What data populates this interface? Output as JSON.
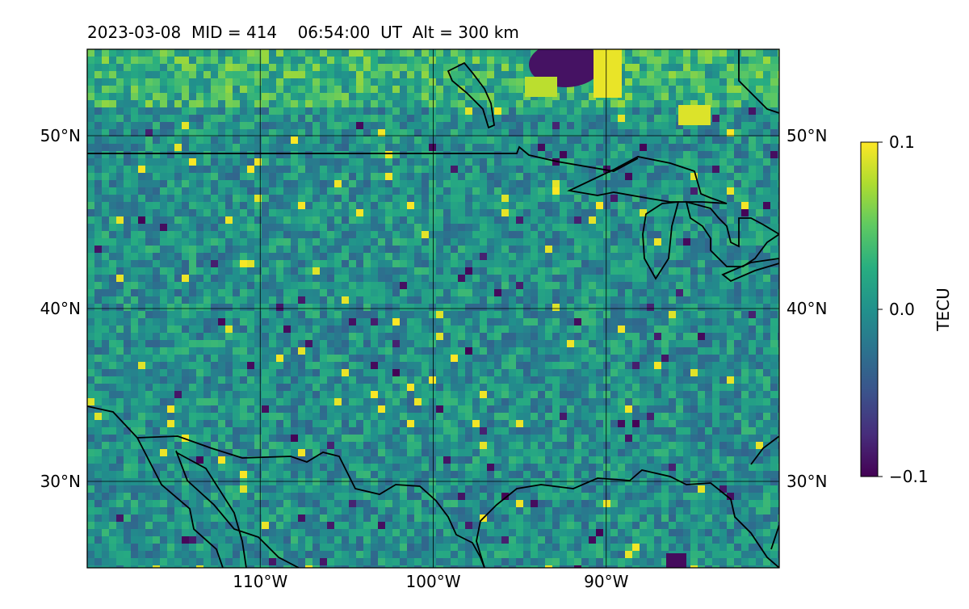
{
  "title": "2023-03-08  MID = 414    06:54:00  UT  Alt = 300 km",
  "map": {
    "projection": "equirectangular",
    "lon_range": [
      -120,
      -80
    ],
    "lat_range": [
      25,
      55
    ],
    "gridlines": true,
    "field": "differential TEC (simulated texture)"
  },
  "axes": {
    "lat_ticks": [
      {
        "value": 50,
        "label": "50°N"
      },
      {
        "value": 40,
        "label": "40°N"
      },
      {
        "value": 30,
        "label": "30°N"
      }
    ],
    "lon_ticks": [
      {
        "value": -110,
        "label": "110°W"
      },
      {
        "value": -100,
        "label": "100°W"
      },
      {
        "value": -90,
        "label": "90°W"
      }
    ]
  },
  "colorbar": {
    "label": "TECU",
    "colormap": "viridis",
    "range": [
      -0.1,
      0.1
    ],
    "ticks": [
      {
        "value": 0.1,
        "label": "0.1"
      },
      {
        "value": 0.0,
        "label": "0.0"
      },
      {
        "value": -0.1,
        "label": "−0.1"
      }
    ]
  },
  "colors": {
    "coastline": "#000000",
    "grid": "#000000",
    "background_field": "#2a8a8a"
  }
}
